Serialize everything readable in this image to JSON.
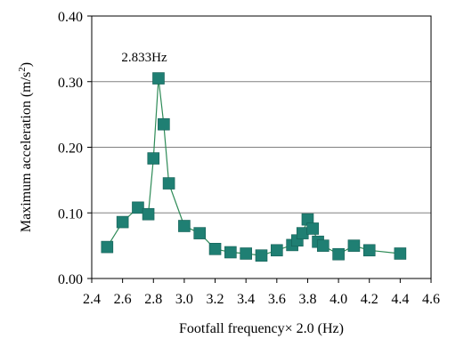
{
  "chart_data": {
    "type": "line",
    "xlabel": "Footfall frequency× 2.0  (Hz)",
    "ylabel_main": "Maximum acceleration  (m/s",
    "ylabel_sup": "2",
    "ylabel_close": ")",
    "xlim": [
      2.4,
      4.6
    ],
    "ylim": [
      0.0,
      0.4
    ],
    "xticks": [
      2.4,
      2.6,
      2.8,
      3.0,
      3.2,
      3.4,
      3.6,
      3.8,
      4.0,
      4.2,
      4.4,
      4.6
    ],
    "yticks": [
      0.0,
      0.1,
      0.2,
      0.3,
      0.4
    ],
    "xtick_labels": [
      "2.4",
      "2.6",
      "2.8",
      "3.0",
      "3.2",
      "3.4",
      "3.6",
      "3.8",
      "4.0",
      "4.2",
      "4.4",
      "4.6"
    ],
    "ytick_labels": [
      "0.00",
      "0.10",
      "0.20",
      "0.30",
      "0.40"
    ],
    "grid": "horizontal",
    "series": [
      {
        "line_color": "#2e8b57",
        "marker_color": "#1f7f73",
        "marker": "square",
        "points": [
          [
            2.5,
            0.048
          ],
          [
            2.6,
            0.086
          ],
          [
            2.7,
            0.108
          ],
          [
            2.767,
            0.098
          ],
          [
            2.8,
            0.183
          ],
          [
            2.833,
            0.305
          ],
          [
            2.867,
            0.235
          ],
          [
            2.9,
            0.145
          ],
          [
            3.0,
            0.08
          ],
          [
            3.1,
            0.069
          ],
          [
            3.2,
            0.045
          ],
          [
            3.3,
            0.04
          ],
          [
            3.4,
            0.038
          ],
          [
            3.5,
            0.035
          ],
          [
            3.6,
            0.043
          ],
          [
            3.7,
            0.051
          ],
          [
            3.733,
            0.058
          ],
          [
            3.767,
            0.069
          ],
          [
            3.8,
            0.09
          ],
          [
            3.833,
            0.076
          ],
          [
            3.867,
            0.056
          ],
          [
            3.9,
            0.05
          ],
          [
            4.0,
            0.037
          ],
          [
            4.1,
            0.05
          ],
          [
            4.2,
            0.043
          ],
          [
            4.4,
            0.038
          ]
        ]
      }
    ],
    "annotations": [
      {
        "text": "2.833Hz",
        "x": 2.833,
        "y": 0.305
      }
    ]
  }
}
